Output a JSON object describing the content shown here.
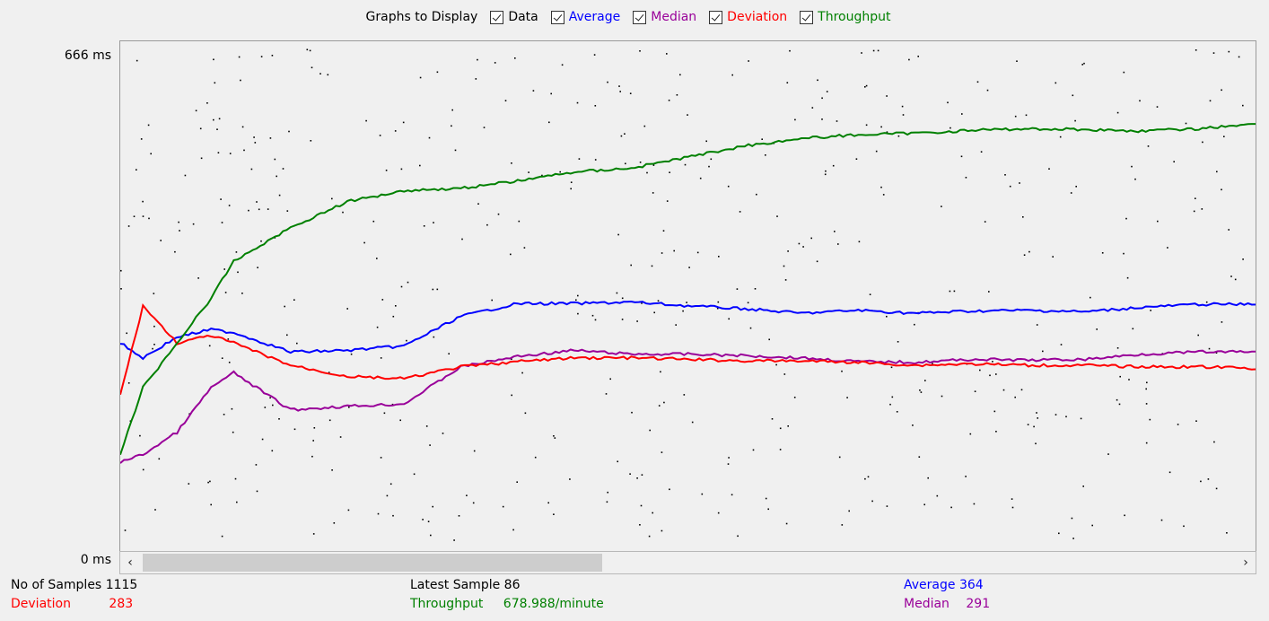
{
  "legend": {
    "title": "Graphs to Display",
    "items": [
      {
        "label": "Data",
        "color": "#000000",
        "checked": true
      },
      {
        "label": "Average",
        "color": "#0000ff",
        "checked": true
      },
      {
        "label": "Median",
        "color": "#990099",
        "checked": true
      },
      {
        "label": "Deviation",
        "color": "#ff0000",
        "checked": true
      },
      {
        "label": "Throughput",
        "color": "#008000",
        "checked": true
      }
    ]
  },
  "axis": {
    "y_max_label": "666  ms",
    "y_min_label": "0  ms"
  },
  "scroll": {
    "left_icon": "chevron-left-icon",
    "right_icon": "chevron-right-icon"
  },
  "stats": {
    "samples_label": "No of Samples",
    "samples_value": "1115",
    "deviation_label": "Deviation",
    "deviation_value": "283",
    "latest_label": "Latest Sample",
    "latest_value": "86",
    "throughput_label": "Throughput",
    "throughput_value": "678.988/minute",
    "average_label": "Average",
    "average_value": "364",
    "median_label": "Median",
    "median_value": "291"
  },
  "chart_data": {
    "type": "line",
    "ylim": [
      0,
      666
    ],
    "x": [
      0,
      0.02,
      0.05,
      0.08,
      0.1,
      0.15,
      0.2,
      0.25,
      0.3,
      0.35,
      0.4,
      0.45,
      0.5,
      0.55,
      0.6,
      0.65,
      0.7,
      0.75,
      0.8,
      0.85,
      0.9,
      0.95,
      1.0
    ],
    "series": [
      {
        "name": "Average",
        "color": "#0000ff",
        "values": [
          270,
          250,
          278,
          288,
          284,
          258,
          260,
          266,
          306,
          323,
          323,
          325,
          320,
          316,
          310,
          314,
          310,
          313,
          314,
          312,
          318,
          322,
          322
        ]
      },
      {
        "name": "Median",
        "color": "#990099",
        "values": [
          110,
          120,
          150,
          210,
          230,
          180,
          185,
          188,
          238,
          252,
          260,
          255,
          255,
          253,
          250,
          245,
          244,
          248,
          247,
          248,
          255,
          258,
          258
        ]
      },
      {
        "name": "Deviation",
        "color": "#ff0000",
        "values": [
          200,
          320,
          270,
          280,
          270,
          240,
          225,
          222,
          238,
          245,
          250,
          250,
          248,
          246,
          246,
          244,
          240,
          242,
          240,
          240,
          238,
          238,
          236
        ]
      },
      {
        "name": "Throughput",
        "color": "#008000",
        "values": [
          120,
          210,
          270,
          330,
          380,
          425,
          460,
          475,
          478,
          488,
          500,
          505,
          520,
          535,
          545,
          550,
          552,
          556,
          558,
          557,
          555,
          558,
          565
        ]
      }
    ],
    "scatter_color": "#000000"
  }
}
